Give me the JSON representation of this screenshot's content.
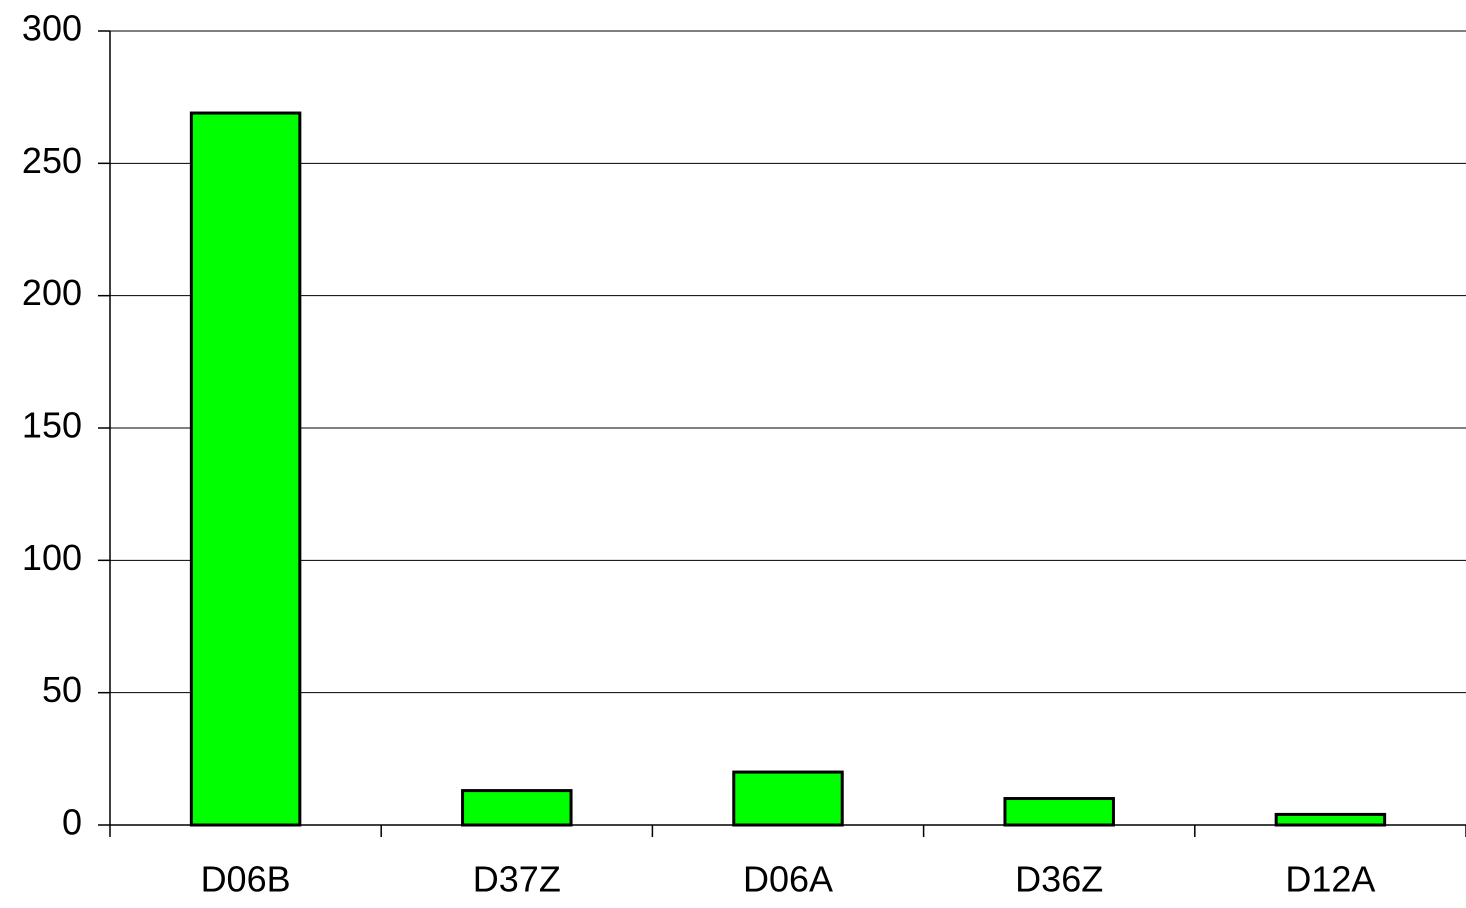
{
  "chart_data": {
    "type": "bar",
    "categories": [
      "D06B",
      "D37Z",
      "D06A",
      "D36Z",
      "D12A"
    ],
    "values": [
      269,
      13,
      20,
      10,
      4
    ],
    "color": "#00ff00",
    "ylim": [
      0,
      300
    ],
    "yticks": [
      0,
      50,
      100,
      150,
      200,
      250,
      300
    ],
    "grid": true
  }
}
